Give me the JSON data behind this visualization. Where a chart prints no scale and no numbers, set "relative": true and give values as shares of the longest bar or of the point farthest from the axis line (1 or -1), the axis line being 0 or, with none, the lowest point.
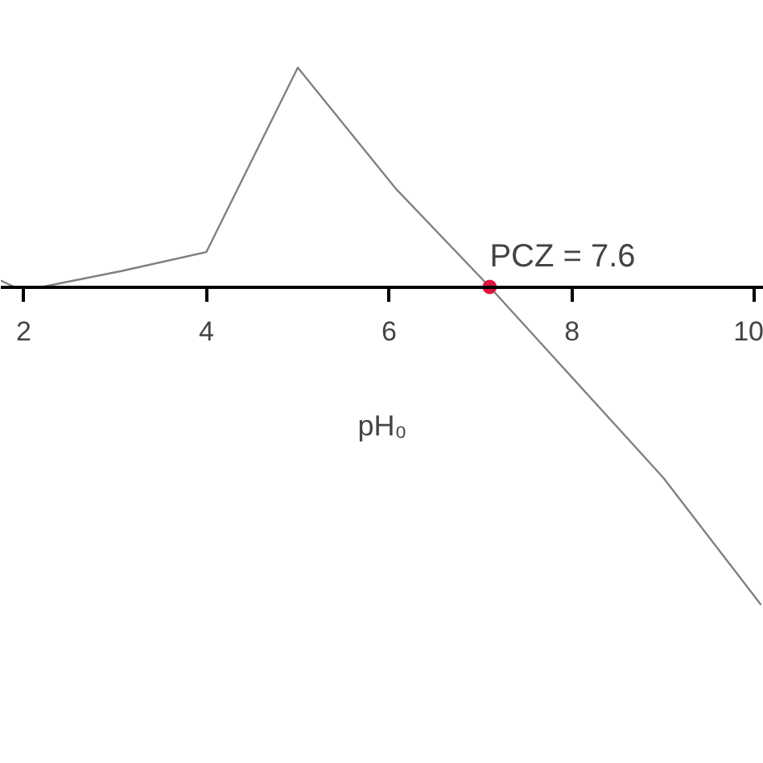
{
  "chart_data": {
    "type": "line",
    "relative": true,
    "xlabel": "pH₀",
    "xlim": [
      1.75,
      10.1
    ],
    "xticks": [
      2,
      4,
      6,
      8,
      10
    ],
    "tick_labels": "x",
    "grid": false,
    "line_style": "solid",
    "annotations": [
      {
        "text": "PCZ = 7.6",
        "x": 7.1,
        "y": 0
      }
    ],
    "series": [
      {
        "color": "#808080",
        "x": [
          1.75,
          1.9,
          2.2,
          3.07,
          4.0,
          5.0,
          6.07,
          7.1,
          9.0,
          10.07
        ],
        "values": [
          0.02,
          0,
          0,
          0.05,
          0.11,
          0.69,
          0.31,
          0,
          -0.6,
          -1
        ]
      },
      {
        "type": "scatter",
        "marker": "circle",
        "color": "#dc143c",
        "x": [
          7.1
        ],
        "values": [
          0
        ]
      }
    ]
  }
}
